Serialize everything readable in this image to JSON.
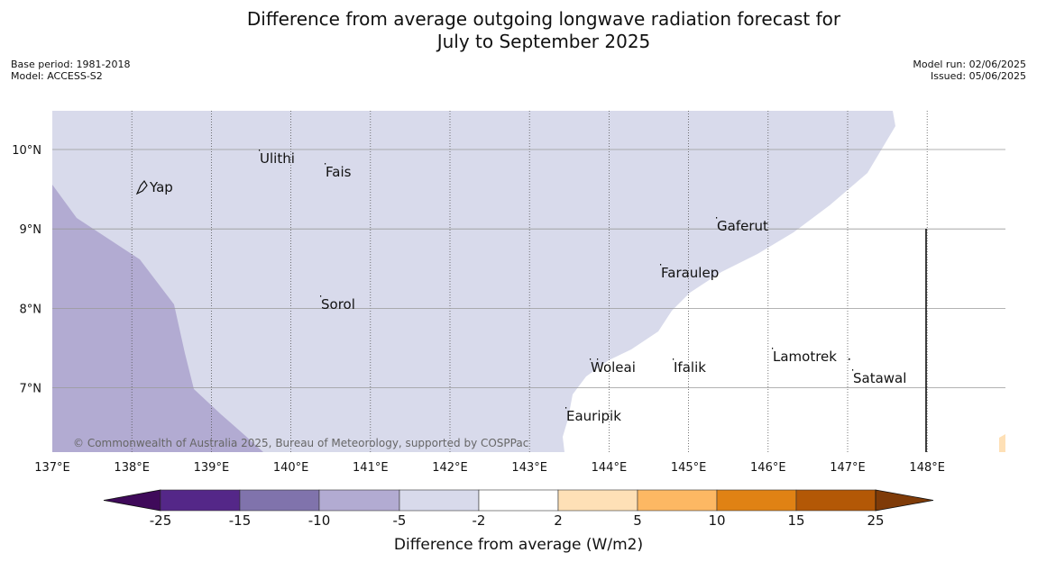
{
  "header": {
    "title_line1": "Difference from average outgoing longwave radiation forecast for",
    "title_line2": "July to September 2025",
    "base_period": "Base period: 1981-2018",
    "model": "Model: ACCESS-S2",
    "model_run": "Model run: 02/06/2025",
    "issued": "Issued: 05/06/2025"
  },
  "map": {
    "lon_ticks": [
      "137°E",
      "138°E",
      "139°E",
      "140°E",
      "141°E",
      "142°E",
      "143°E",
      "144°E",
      "145°E",
      "146°E",
      "147°E",
      "148°E"
    ],
    "lat_ticks": [
      "10°N",
      "9°N",
      "8°N",
      "7°N"
    ],
    "places": [
      {
        "name": "Yap"
      },
      {
        "name": "Ulithi"
      },
      {
        "name": "Fais"
      },
      {
        "name": "Gaferut"
      },
      {
        "name": "Faraulep"
      },
      {
        "name": "Sorol"
      },
      {
        "name": "Woleai"
      },
      {
        "name": "Ifalik"
      },
      {
        "name": "Lamotrek"
      },
      {
        "name": "Satawal"
      },
      {
        "name": "Eauripik"
      }
    ],
    "copyright": "© Commonwealth of Australia 2025, Bureau of Meteorology, supported by COSPPac"
  },
  "colorbar": {
    "title": "Difference from average (W/m2)",
    "tick_labels": [
      "-25",
      "-15",
      "-10",
      "-5",
      "-2",
      "2",
      "5",
      "10",
      "15",
      "25"
    ],
    "colors": [
      "#3f0a5a",
      "#542788",
      "#8073ac",
      "#b2abd2",
      "#d8daeb",
      "#ffffff",
      "#fee0b6",
      "#fdb863",
      "#e08214",
      "#b35806",
      "#7f3b08"
    ]
  }
}
